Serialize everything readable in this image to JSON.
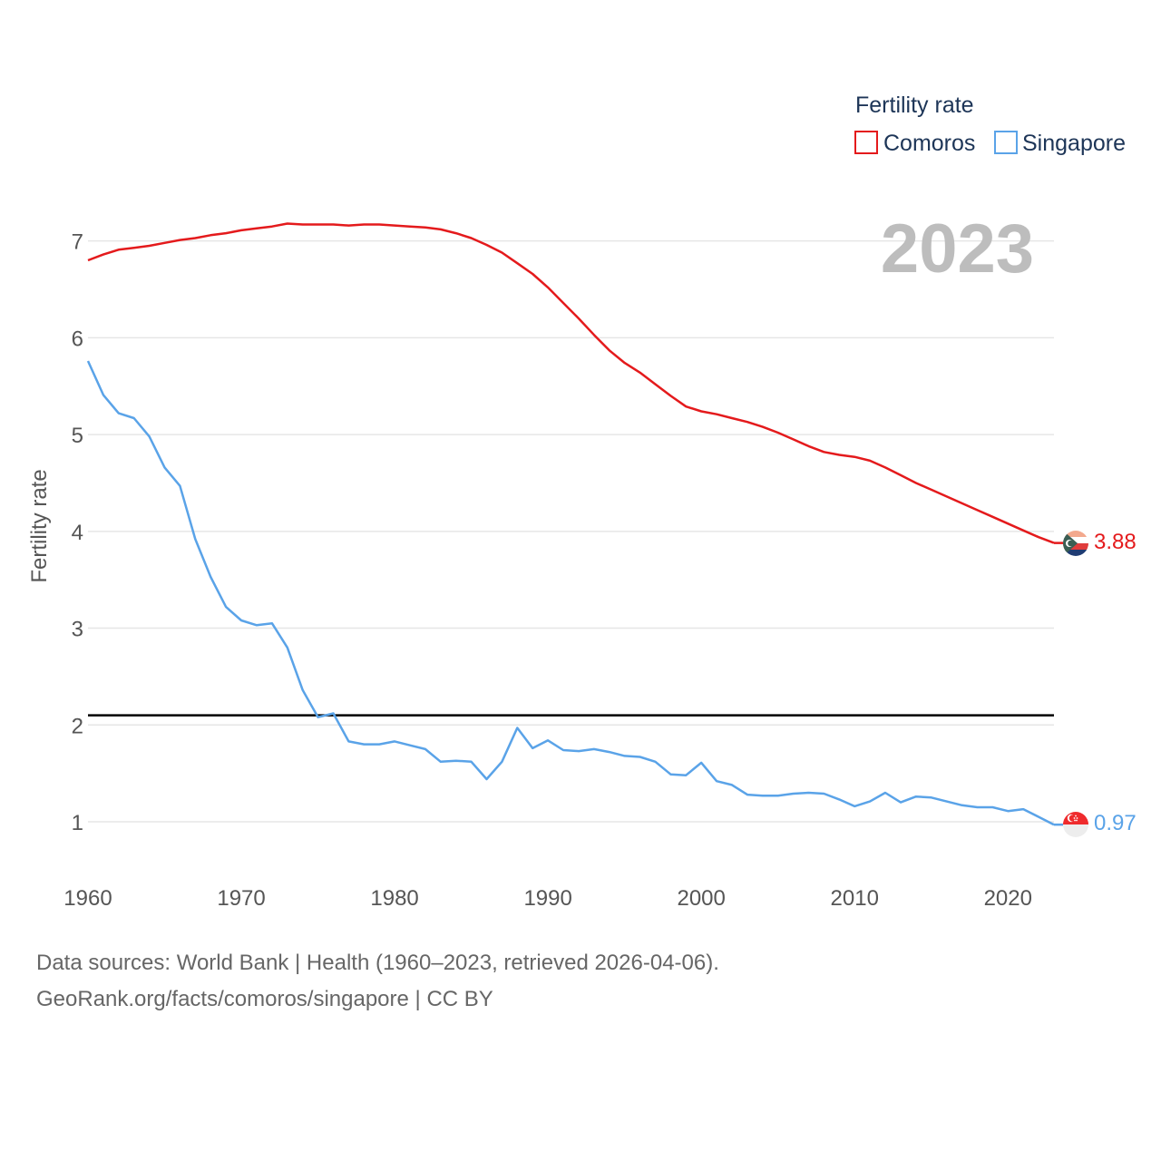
{
  "chart_data": {
    "type": "line",
    "ylabel": "Fertility rate",
    "xlim": [
      1960,
      2023
    ],
    "ylim": [
      0.4,
      7.4
    ],
    "x_ticks": [
      1960,
      1970,
      1980,
      1990,
      2000,
      2010,
      2020
    ],
    "y_ticks": [
      1,
      2,
      3,
      4,
      5,
      6,
      7
    ],
    "gridlines": true,
    "current_year": "2023",
    "legend": {
      "title": "Fertility rate",
      "position": "top-right"
    },
    "reference_line": {
      "value": 2.1,
      "color": "#000000"
    },
    "x": [
      1960,
      1961,
      1962,
      1963,
      1964,
      1965,
      1966,
      1967,
      1968,
      1969,
      1970,
      1971,
      1972,
      1973,
      1974,
      1975,
      1976,
      1977,
      1978,
      1979,
      1980,
      1981,
      1982,
      1983,
      1984,
      1985,
      1986,
      1987,
      1988,
      1989,
      1990,
      1991,
      1992,
      1993,
      1994,
      1995,
      1996,
      1997,
      1998,
      1999,
      2000,
      2001,
      2002,
      2003,
      2004,
      2005,
      2006,
      2007,
      2008,
      2009,
      2010,
      2011,
      2012,
      2013,
      2014,
      2015,
      2016,
      2017,
      2018,
      2019,
      2020,
      2021,
      2022,
      2023
    ],
    "series": [
      {
        "name": "Comoros",
        "color": "#e41a1c",
        "end_label": "3.88",
        "values": [
          6.8,
          6.86,
          6.91,
          6.93,
          6.95,
          6.98,
          7.01,
          7.03,
          7.06,
          7.08,
          7.11,
          7.13,
          7.15,
          7.18,
          7.17,
          7.17,
          7.17,
          7.16,
          7.17,
          7.17,
          7.16,
          7.15,
          7.14,
          7.12,
          7.08,
          7.03,
          6.96,
          6.88,
          6.77,
          6.66,
          6.52,
          6.36,
          6.2,
          6.03,
          5.87,
          5.74,
          5.64,
          5.52,
          5.4,
          5.29,
          5.24,
          5.21,
          5.17,
          5.13,
          5.08,
          5.02,
          4.95,
          4.88,
          4.82,
          4.79,
          4.77,
          4.73,
          4.66,
          4.58,
          4.5,
          4.43,
          4.36,
          4.29,
          4.22,
          4.15,
          4.08,
          4.01,
          3.94,
          3.88
        ]
      },
      {
        "name": "Singapore",
        "color": "#5aa3e8",
        "end_label": "0.97",
        "values": [
          5.76,
          5.41,
          5.22,
          5.17,
          4.98,
          4.66,
          4.47,
          3.92,
          3.53,
          3.22,
          3.08,
          3.03,
          3.05,
          2.8,
          2.36,
          2.08,
          2.12,
          1.83,
          1.8,
          1.8,
          1.83,
          1.79,
          1.75,
          1.62,
          1.63,
          1.62,
          1.44,
          1.62,
          1.97,
          1.76,
          1.84,
          1.74,
          1.73,
          1.75,
          1.72,
          1.68,
          1.67,
          1.62,
          1.49,
          1.48,
          1.61,
          1.42,
          1.38,
          1.28,
          1.27,
          1.27,
          1.29,
          1.3,
          1.29,
          1.23,
          1.16,
          1.21,
          1.3,
          1.2,
          1.26,
          1.25,
          1.21,
          1.17,
          1.15,
          1.15,
          1.11,
          1.13,
          1.05,
          0.97
        ]
      }
    ]
  },
  "footer": {
    "source_line": "Data sources: World Bank | Health (1960–2023, retrieved 2026-04-06).",
    "credit_line": "GeoRank.org/facts/comoros/singapore | CC BY"
  }
}
